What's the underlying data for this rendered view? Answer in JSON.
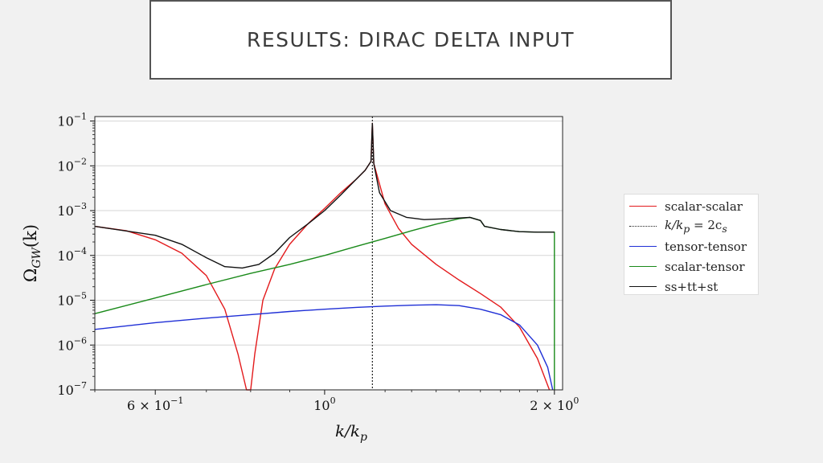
{
  "slide": {
    "title": "RESULTS: DIRAC DELTA INPUT"
  },
  "chart_data": {
    "type": "line",
    "x_scale": "log",
    "y_scale": "log",
    "xlim": [
      0.5,
      2.05
    ],
    "ylim_exponents": [
      -7,
      -0.9
    ],
    "xlabel": "k/k",
    "xlabel_sub": "p",
    "ylabel": "Ω",
    "ylabel_sub": "GW",
    "ylabel_suffix": "(k)",
    "x_ticks": [
      {
        "value": 0.6,
        "mantissa": "6 × 10",
        "exp": "−1"
      },
      {
        "value": 1.0,
        "mantissa": "10",
        "exp": "0"
      },
      {
        "value": 2.0,
        "mantissa": "2 × 10",
        "exp": "0"
      }
    ],
    "y_ticks": [
      {
        "exp_value": -1,
        "base": "10",
        "exp": "−1"
      },
      {
        "exp_value": -2,
        "base": "10",
        "exp": "−2"
      },
      {
        "exp_value": -3,
        "base": "10",
        "exp": "−3"
      },
      {
        "exp_value": -4,
        "base": "10",
        "exp": "−4"
      },
      {
        "exp_value": -5,
        "base": "10",
        "exp": "−5"
      },
      {
        "exp_value": -6,
        "base": "10",
        "exp": "−6"
      },
      {
        "exp_value": -7,
        "base": "10",
        "exp": "−7"
      }
    ],
    "vline": {
      "x": 1.155
    },
    "series": [
      {
        "name": "scalar-scalar",
        "color": "#e31a1c",
        "points": [
          [
            0.5,
            -3.35
          ],
          [
            0.55,
            -3.45
          ],
          [
            0.6,
            -3.65
          ],
          [
            0.65,
            -3.95
          ],
          [
            0.7,
            -4.45
          ],
          [
            0.74,
            -5.2
          ],
          [
            0.77,
            -6.2
          ],
          [
            0.79,
            -7.0
          ],
          [
            0.8,
            -7.0
          ],
          [
            0.81,
            -6.2
          ],
          [
            0.83,
            -5.0
          ],
          [
            0.86,
            -4.3
          ],
          [
            0.9,
            -3.75
          ],
          [
            0.95,
            -3.3
          ],
          [
            1.0,
            -2.95
          ],
          [
            1.05,
            -2.6
          ],
          [
            1.1,
            -2.3
          ],
          [
            1.13,
            -2.1
          ],
          [
            1.15,
            -1.9
          ],
          [
            1.155,
            -1.05
          ],
          [
            1.16,
            -1.95
          ],
          [
            1.2,
            -2.85
          ],
          [
            1.25,
            -3.4
          ],
          [
            1.3,
            -3.75
          ],
          [
            1.4,
            -4.2
          ],
          [
            1.5,
            -4.55
          ],
          [
            1.6,
            -4.85
          ],
          [
            1.7,
            -5.15
          ],
          [
            1.8,
            -5.6
          ],
          [
            1.9,
            -6.3
          ],
          [
            1.97,
            -7.0
          ]
        ]
      },
      {
        "name": "k/k_p = 2c_s",
        "color": "#222222",
        "dashed": true
      },
      {
        "name": "tensor-tensor",
        "color": "#1f2fd6",
        "points": [
          [
            0.5,
            -5.65
          ],
          [
            0.6,
            -5.5
          ],
          [
            0.7,
            -5.4
          ],
          [
            0.8,
            -5.32
          ],
          [
            0.9,
            -5.25
          ],
          [
            1.0,
            -5.2
          ],
          [
            1.1,
            -5.16
          ],
          [
            1.2,
            -5.13
          ],
          [
            1.3,
            -5.11
          ],
          [
            1.4,
            -5.1
          ],
          [
            1.5,
            -5.12
          ],
          [
            1.6,
            -5.2
          ],
          [
            1.7,
            -5.32
          ],
          [
            1.8,
            -5.55
          ],
          [
            1.9,
            -6.0
          ],
          [
            1.96,
            -6.5
          ],
          [
            1.99,
            -7.0
          ]
        ]
      },
      {
        "name": "scalar-tensor",
        "color": "#1a8a1a",
        "points": [
          [
            0.5,
            -5.3
          ],
          [
            0.6,
            -4.95
          ],
          [
            0.7,
            -4.65
          ],
          [
            0.8,
            -4.4
          ],
          [
            0.9,
            -4.2
          ],
          [
            1.0,
            -4.0
          ],
          [
            1.1,
            -3.8
          ],
          [
            1.2,
            -3.62
          ],
          [
            1.3,
            -3.45
          ],
          [
            1.4,
            -3.3
          ],
          [
            1.5,
            -3.18
          ],
          [
            1.55,
            -3.15
          ],
          [
            1.6,
            -3.22
          ],
          [
            1.62,
            -3.35
          ],
          [
            1.7,
            -3.42
          ],
          [
            1.8,
            -3.47
          ],
          [
            1.9,
            -3.48
          ],
          [
            2.0,
            -3.48
          ],
          [
            2.0,
            -7.0
          ]
        ]
      },
      {
        "name": "ss+tt+st",
        "color": "#111111",
        "points": [
          [
            0.5,
            -3.35
          ],
          [
            0.6,
            -3.55
          ],
          [
            0.65,
            -3.75
          ],
          [
            0.7,
            -4.05
          ],
          [
            0.74,
            -4.25
          ],
          [
            0.78,
            -4.28
          ],
          [
            0.82,
            -4.2
          ],
          [
            0.86,
            -3.95
          ],
          [
            0.9,
            -3.6
          ],
          [
            0.95,
            -3.3
          ],
          [
            1.0,
            -3.0
          ],
          [
            1.05,
            -2.65
          ],
          [
            1.1,
            -2.3
          ],
          [
            1.13,
            -2.1
          ],
          [
            1.15,
            -1.9
          ],
          [
            1.155,
            -1.05
          ],
          [
            1.16,
            -1.95
          ],
          [
            1.18,
            -2.6
          ],
          [
            1.22,
            -3.0
          ],
          [
            1.28,
            -3.15
          ],
          [
            1.35,
            -3.2
          ],
          [
            1.45,
            -3.18
          ],
          [
            1.55,
            -3.15
          ],
          [
            1.6,
            -3.22
          ],
          [
            1.62,
            -3.35
          ],
          [
            1.7,
            -3.42
          ],
          [
            1.8,
            -3.47
          ],
          [
            1.9,
            -3.48
          ],
          [
            2.0,
            -3.48
          ]
        ]
      }
    ]
  },
  "legend": {
    "items": [
      {
        "label": "scalar-scalar",
        "color": "#e31a1c",
        "style": "solid"
      },
      {
        "label": "k/k",
        "sub": "p",
        "suffix": " = 2c",
        "sub2": "s",
        "color": "#222222",
        "style": "dotted"
      },
      {
        "label": "tensor-tensor",
        "color": "#1f2fd6",
        "style": "solid"
      },
      {
        "label": "scalar-tensor",
        "color": "#1a8a1a",
        "style": "solid"
      },
      {
        "label": "ss+tt+st",
        "color": "#111111",
        "style": "solid"
      }
    ]
  }
}
